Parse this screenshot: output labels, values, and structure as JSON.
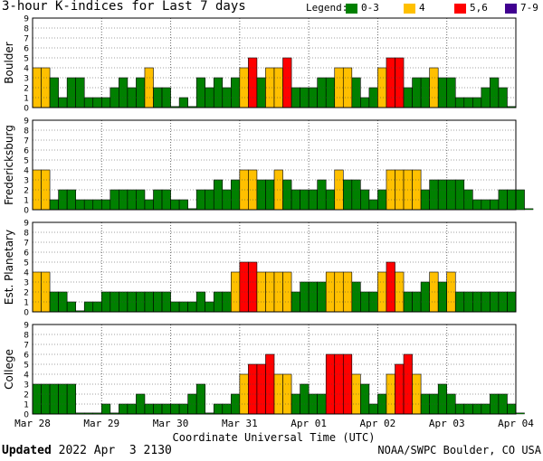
{
  "title": "3-hour K-indices for Last 7 days",
  "legend": {
    "label": "Legend:",
    "items": [
      {
        "label": "0-3",
        "color": "#008000"
      },
      {
        "label": "4",
        "color": "#ffc000"
      },
      {
        "label": "5,6",
        "color": "#ff0000"
      },
      {
        "label": "7-9",
        "color": "#400090"
      }
    ]
  },
  "chart_data": {
    "type": "bar",
    "xlabel": "Coordinate Universal Time (UTC)",
    "x_tick_labels": [
      "Mar 28",
      "Mar 29",
      "Mar 30",
      "Mar 31",
      "Apr 01",
      "Apr 02",
      "Apr 03",
      "Apr 04"
    ],
    "bins_per_day": 8,
    "ylim": [
      0,
      9
    ],
    "y_ticks": [
      0,
      1,
      2,
      3,
      4,
      5,
      6,
      7,
      8,
      9
    ],
    "panels": [
      {
        "name": "Boulder",
        "values": [
          4,
          4,
          3,
          1,
          3,
          3,
          1,
          1,
          1,
          2,
          3,
          2,
          3,
          4,
          2,
          2,
          0,
          1,
          0,
          3,
          2,
          3,
          2,
          3,
          4,
          5,
          3,
          4,
          4,
          5,
          2,
          2,
          2,
          3,
          3,
          4,
          4,
          3,
          1,
          2,
          4,
          5,
          5,
          2,
          3,
          3,
          4,
          3,
          3,
          1,
          1,
          1,
          2,
          3,
          2,
          0
        ]
      },
      {
        "name": "Fredericksburg",
        "values": [
          4,
          4,
          1,
          2,
          2,
          1,
          1,
          1,
          1,
          2,
          2,
          2,
          2,
          1,
          2,
          2,
          1,
          1,
          0,
          2,
          2,
          3,
          2,
          3,
          4,
          4,
          3,
          3,
          4,
          3,
          2,
          2,
          2,
          3,
          2,
          4,
          3,
          3,
          2,
          1,
          2,
          4,
          4,
          4,
          4,
          2,
          3,
          3,
          3,
          3,
          2,
          1,
          1,
          1,
          2,
          2,
          2,
          0
        ]
      },
      {
        "name": "Est. Planetary",
        "values": [
          4,
          4,
          2,
          2,
          1,
          0,
          1,
          1,
          2,
          2,
          2,
          2,
          2,
          2,
          2,
          2,
          1,
          1,
          1,
          2,
          1,
          2,
          2,
          4,
          5,
          5,
          4,
          4,
          4,
          4,
          2,
          3,
          3,
          3,
          4,
          4,
          4,
          3,
          2,
          2,
          4,
          5,
          4,
          2,
          2,
          3,
          4,
          3,
          4,
          2,
          2,
          2,
          2,
          2,
          2,
          2
        ]
      },
      {
        "name": "College",
        "values": [
          3,
          3,
          3,
          3,
          3,
          0,
          0,
          0,
          1,
          0,
          1,
          1,
          2,
          1,
          1,
          1,
          1,
          1,
          2,
          3,
          0,
          1,
          1,
          2,
          4,
          5,
          5,
          6,
          4,
          4,
          2,
          3,
          2,
          2,
          6,
          6,
          6,
          4,
          3,
          1,
          2,
          4,
          5,
          6,
          4,
          2,
          2,
          3,
          2,
          1,
          1,
          1,
          1,
          2,
          2,
          1,
          0
        ]
      }
    ]
  },
  "footer": {
    "updated_label": "Updated",
    "updated_value": " 2022 Apr  3 2130",
    "source": "NOAA/SWPC Boulder, CO USA"
  }
}
